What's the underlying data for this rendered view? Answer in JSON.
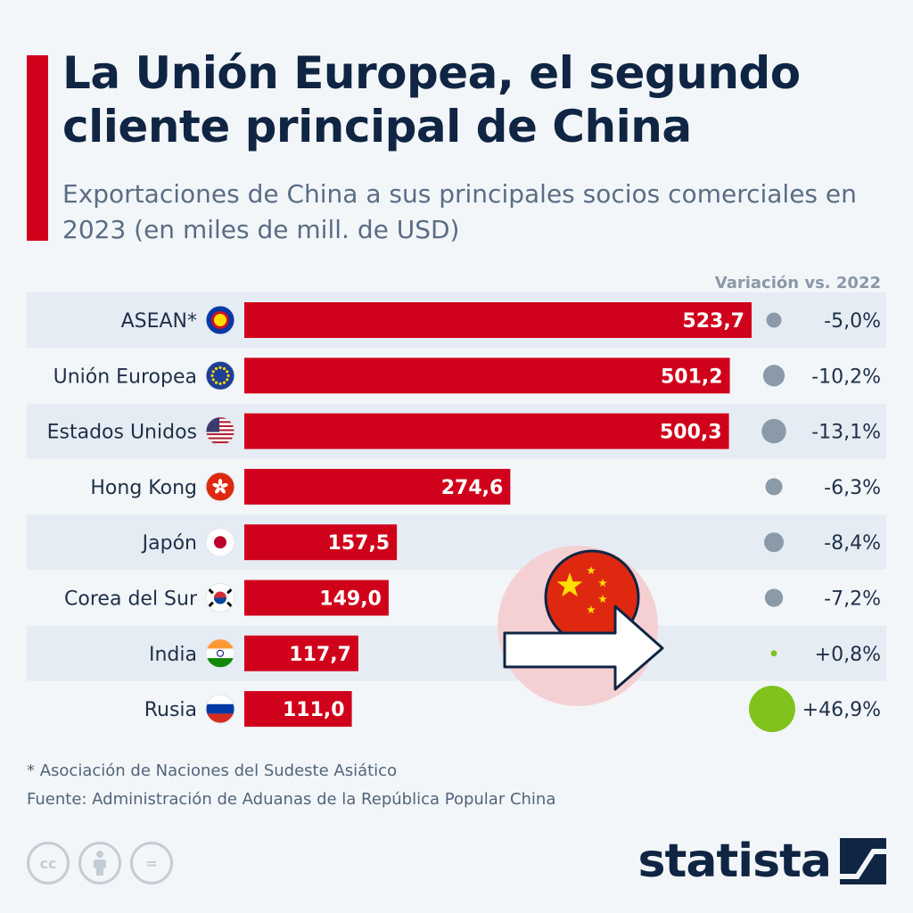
{
  "title": "La Unión Europea, el segundo cliente principal de China",
  "subtitle": "Exportaciones de China a sus principales socios comerciales en 2023 (en miles de mill. de USD)",
  "variation_header": "Variación vs. 2022",
  "footnote": "* Asociación de Naciones del Sudeste Asiático",
  "source": "Fuente: Administración de Aduanas de la República Popular China",
  "brand": "statista",
  "license_icons": [
    "cc-icon",
    "attribution-icon",
    "no-derivatives-icon"
  ],
  "license_text": {
    "cc": "cc",
    "equals": "="
  },
  "colors": {
    "bar": "#d0021b",
    "title": "#0f2543",
    "row_band": "#e6ecf3",
    "dot_negative": "#8b9aa9",
    "dot_positive": "#7fc31c"
  },
  "chart_data": {
    "type": "bar",
    "orientation": "horizontal",
    "categories": [
      "ASEAN*",
      "Unión Europea",
      "Estados Unidos",
      "Hong Kong",
      "Japón",
      "Corea del Sur",
      "India",
      "Rusia"
    ],
    "values": [
      523.7,
      501.2,
      500.3,
      274.6,
      157.5,
      149.0,
      117.7,
      111.0
    ],
    "value_labels": [
      "523,7",
      "501,2",
      "500,3",
      "274,6",
      "157,5",
      "149,0",
      "117,7",
      "111,0"
    ],
    "variation": [
      -5.0,
      -10.2,
      -13.1,
      -6.3,
      -8.4,
      -7.2,
      0.8,
      46.9
    ],
    "variation_labels": [
      "-5,0%",
      "-10,2%",
      "-13,1%",
      "-6,3%",
      "-8,4%",
      "-7,2%",
      "+0,8%",
      "+46,9%"
    ],
    "flags": [
      "asean",
      "eu",
      "us",
      "hk",
      "jp",
      "kr",
      "in",
      "ru"
    ],
    "xlim": [
      0,
      523.7
    ]
  }
}
